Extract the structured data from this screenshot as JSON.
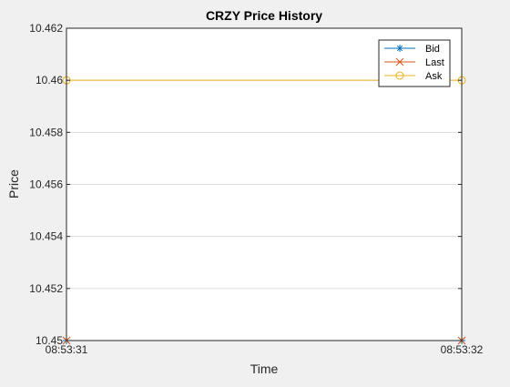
{
  "chart_data": {
    "type": "line",
    "title": "CRZY Price History",
    "xlabel": "Time",
    "ylabel": "Price",
    "x": [
      "08:53:31",
      "08:53:32"
    ],
    "xticks": [
      "08:53:31",
      "08:53:32"
    ],
    "ylim": [
      10.45,
      10.462
    ],
    "yticks": [
      10.45,
      10.452,
      10.454,
      10.456,
      10.458,
      10.46,
      10.462
    ],
    "ytick_labels": [
      "10.45",
      "10.452",
      "10.454",
      "10.456",
      "10.458",
      "10.46",
      "10.462"
    ],
    "grid": "y",
    "legend_position": "top-right",
    "series": [
      {
        "name": "Bid",
        "values": [
          10.45,
          10.45
        ],
        "color": "#0072bd",
        "marker": "asterisk"
      },
      {
        "name": "Last",
        "values": [
          10.45,
          10.45
        ],
        "color": "#d95319",
        "marker": "cross"
      },
      {
        "name": "Ask",
        "values": [
          10.46,
          10.46
        ],
        "color": "#edb120",
        "marker": "circle"
      }
    ]
  }
}
